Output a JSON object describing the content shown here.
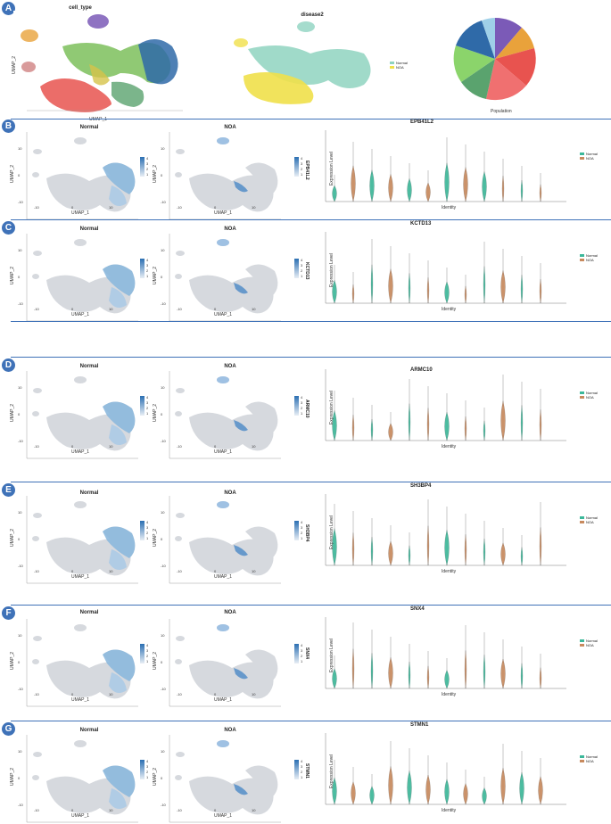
{
  "panels": [
    {
      "label": "A",
      "titles": {
        "umap_left": "cell_type",
        "umap_mid": "disease2"
      },
      "umap_axes": {
        "x": "UMAP_1",
        "y": "UMAP_2"
      },
      "legend_mid": [
        "Normal",
        "NOA"
      ],
      "pie_xlabel": "Population"
    },
    {
      "label": "B",
      "gene": "EPB41L2"
    },
    {
      "label": "C",
      "gene": "KCTD13"
    },
    {
      "label": "D",
      "gene": "ARMC10"
    },
    {
      "label": "E",
      "gene": "SH3BP4"
    },
    {
      "label": "F",
      "gene": "SNX4"
    },
    {
      "label": "G",
      "gene": "STMN1"
    }
  ],
  "common": {
    "normal": "Normal",
    "noa": "NOA",
    "umap_x": "UMAP_1",
    "umap_y": "UMAP_2",
    "x_ticks": [
      "-10",
      "0",
      "10"
    ],
    "y_ticks": [
      "10",
      "0",
      "-10"
    ],
    "violin_ylabel": "Expression Level",
    "violin_xlabel": "Identity",
    "cbar_ticks": [
      "4",
      "3",
      "2",
      "1"
    ],
    "legend": [
      "Normal",
      "NOA"
    ]
  },
  "colors": {
    "accent": "#3f72b8",
    "normal": "#3cb89a",
    "noa": "#c88a5e"
  }
}
